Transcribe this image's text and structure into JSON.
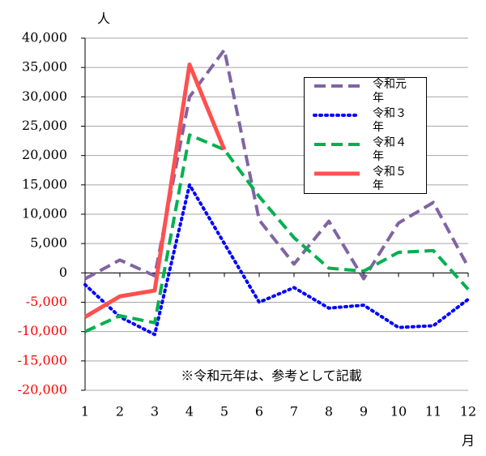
{
  "chart_data": {
    "type": "line",
    "y_label": "人",
    "x_label": "月",
    "annotation": "※令和元年は、参考として記載",
    "categories": [
      "1",
      "2",
      "3",
      "4",
      "5",
      "6",
      "7",
      "8",
      "9",
      "10",
      "11",
      "12"
    ],
    "series": [
      {
        "name": "令和元年",
        "color": "#8064a2",
        "style": "dashed",
        "values": [
          -1000,
          2200,
          -500,
          30000,
          38000,
          9000,
          1500,
          8800,
          -1000,
          8500,
          12000,
          1000
        ]
      },
      {
        "name": "令和３年",
        "color": "#0000ff",
        "style": "dotted",
        "values": [
          -2000,
          -7500,
          -10500,
          15000,
          5000,
          -5000,
          -2500,
          -6000,
          -5500,
          -9300,
          -9000,
          -4500
        ]
      },
      {
        "name": "令和４年",
        "color": "#00b050",
        "style": "dashed",
        "values": [
          -10000,
          -7300,
          -8500,
          23500,
          21000,
          13000,
          6000,
          800,
          300,
          3500,
          3800,
          -2800
        ]
      },
      {
        "name": "令和５年",
        "color": "#ff5050",
        "style": "solid",
        "values": [
          -7500,
          -4000,
          -3000,
          35500,
          21000,
          null,
          null,
          null,
          null,
          null,
          null,
          null
        ]
      }
    ],
    "ylim": [
      -20000,
      40000
    ],
    "yticks": [
      {
        "value": -20000,
        "label": "-20,000"
      },
      {
        "value": -15000,
        "label": "-15,000"
      },
      {
        "value": -10000,
        "label": "-10,000"
      },
      {
        "value": -5000,
        "label": "-5,000"
      },
      0,
      {
        "value": 5000,
        "label": "5,000"
      },
      {
        "value": 10000,
        "label": "10,000"
      },
      {
        "value": 15000,
        "label": "15,000"
      },
      {
        "value": 20000,
        "label": "20,000"
      },
      {
        "value": 25000,
        "label": "25,000"
      },
      {
        "value": 30000,
        "label": "30,000"
      },
      {
        "value": 35000,
        "label": "35,000"
      },
      {
        "value": 40000,
        "label": "40,000"
      }
    ],
    "grid": true,
    "negative_tick_color": "#ff0000",
    "legend": "upper right"
  }
}
